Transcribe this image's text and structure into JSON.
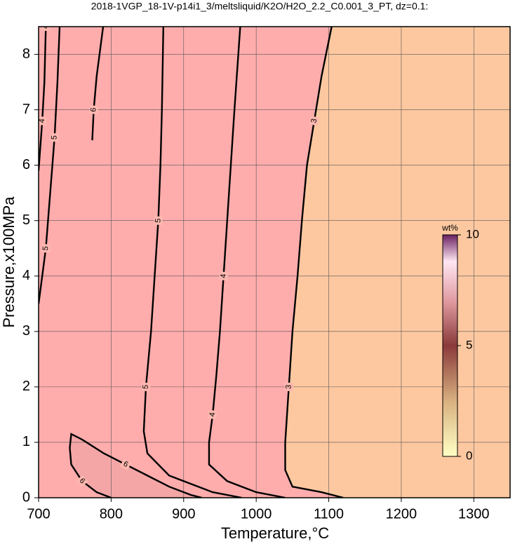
{
  "chart_data": {
    "type": "contour",
    "title": "2018-1VGP_18-1V-p14i1_3/meltsliquid/K2O/H2O_2.2_C0.001_3_PT, dz=0.1:",
    "x_label": "Temperature,°C",
    "y_label": "Pressure,x100MPa",
    "xlim": [
      700,
      1350
    ],
    "ylim": [
      0,
      8.5
    ],
    "xticks": [
      700,
      800,
      900,
      1000,
      1100,
      1200,
      1300
    ],
    "yticks": [
      0,
      1,
      2,
      3,
      4,
      5,
      6,
      7,
      8
    ],
    "grid": true,
    "colorbar": {
      "label": "wt%",
      "lim": [
        0,
        10
      ],
      "ticks": [
        0,
        5,
        10
      ]
    },
    "series": [
      {
        "level": 3,
        "x": [
          1120,
          1090,
          1050,
          1040,
          1040,
          1045,
          1050,
          1057,
          1063,
          1070,
          1080,
          1090,
          1104
        ],
        "y": [
          0,
          0.1,
          0.2,
          0.5,
          1.0,
          2.0,
          3.0,
          4.0,
          5.0,
          6.0,
          6.8,
          7.6,
          8.5
        ]
      },
      {
        "level": 4,
        "x": [
          1040,
          1000,
          960,
          935,
          935,
          940,
          945,
          950,
          955,
          960,
          965,
          970,
          978
        ],
        "y": [
          0,
          0.1,
          0.3,
          0.6,
          1.0,
          1.5,
          2.2,
          3.0,
          4.0,
          5.0,
          6.0,
          7.0,
          8.5
        ]
      },
      {
        "level": 5,
        "x": [
          980,
          940,
          880,
          850,
          845,
          848,
          855,
          860,
          865,
          868,
          870,
          872
        ],
        "y": [
          0,
          0.1,
          0.4,
          0.8,
          1.2,
          2.0,
          3.0,
          4.0,
          5.0,
          6.0,
          7.0,
          8.5
        ]
      },
      {
        "level": 5,
        "x": [
          700,
          710,
          716,
          722,
          726,
          729
        ],
        "y": [
          3.5,
          4.5,
          5.5,
          6.5,
          7.5,
          8.5
        ]
      },
      {
        "level": 4,
        "x": [
          700,
          705,
          708,
          710
        ],
        "y": [
          5.9,
          6.8,
          7.5,
          8.5
        ]
      },
      {
        "level": 6,
        "x": [
          774,
          776,
          780,
          789
        ],
        "y": [
          6.45,
          7.0,
          7.6,
          8.5
        ]
      },
      {
        "level": 6,
        "x": [
          800,
          780,
          760,
          745,
          743,
          745,
          760,
          790,
          820,
          850,
          880,
          910,
          925
        ],
        "y": [
          0,
          0.1,
          0.3,
          0.6,
          0.9,
          1.15,
          1.05,
          0.8,
          0.6,
          0.4,
          0.2,
          0.05,
          0
        ]
      }
    ]
  }
}
